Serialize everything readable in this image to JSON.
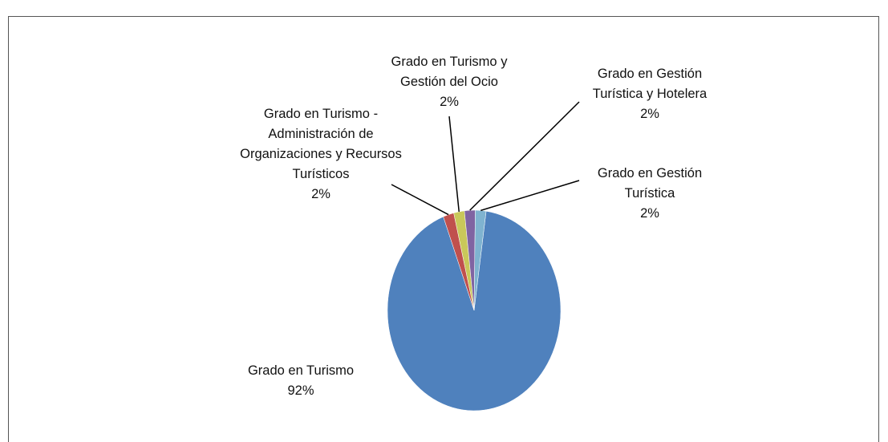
{
  "chart_data": {
    "type": "pie",
    "categories": [
      "Grado en Turismo",
      "Grado en Turismo - Administración de Organizaciones y Recursos Turísticos",
      "Grado en Turismo y Gestión del Ocio",
      "Grado en Gestión Turística y Hotelera",
      "Grado en Gestión Turística"
    ],
    "values": [
      92,
      2,
      2,
      2,
      2
    ],
    "value_labels": [
      "92%",
      "2%",
      "2%",
      "2%",
      "2%"
    ],
    "colors": [
      "#4f81bd",
      "#c0504d",
      "#c9c85a",
      "#8064a2",
      "#7fb3d0"
    ]
  }
}
